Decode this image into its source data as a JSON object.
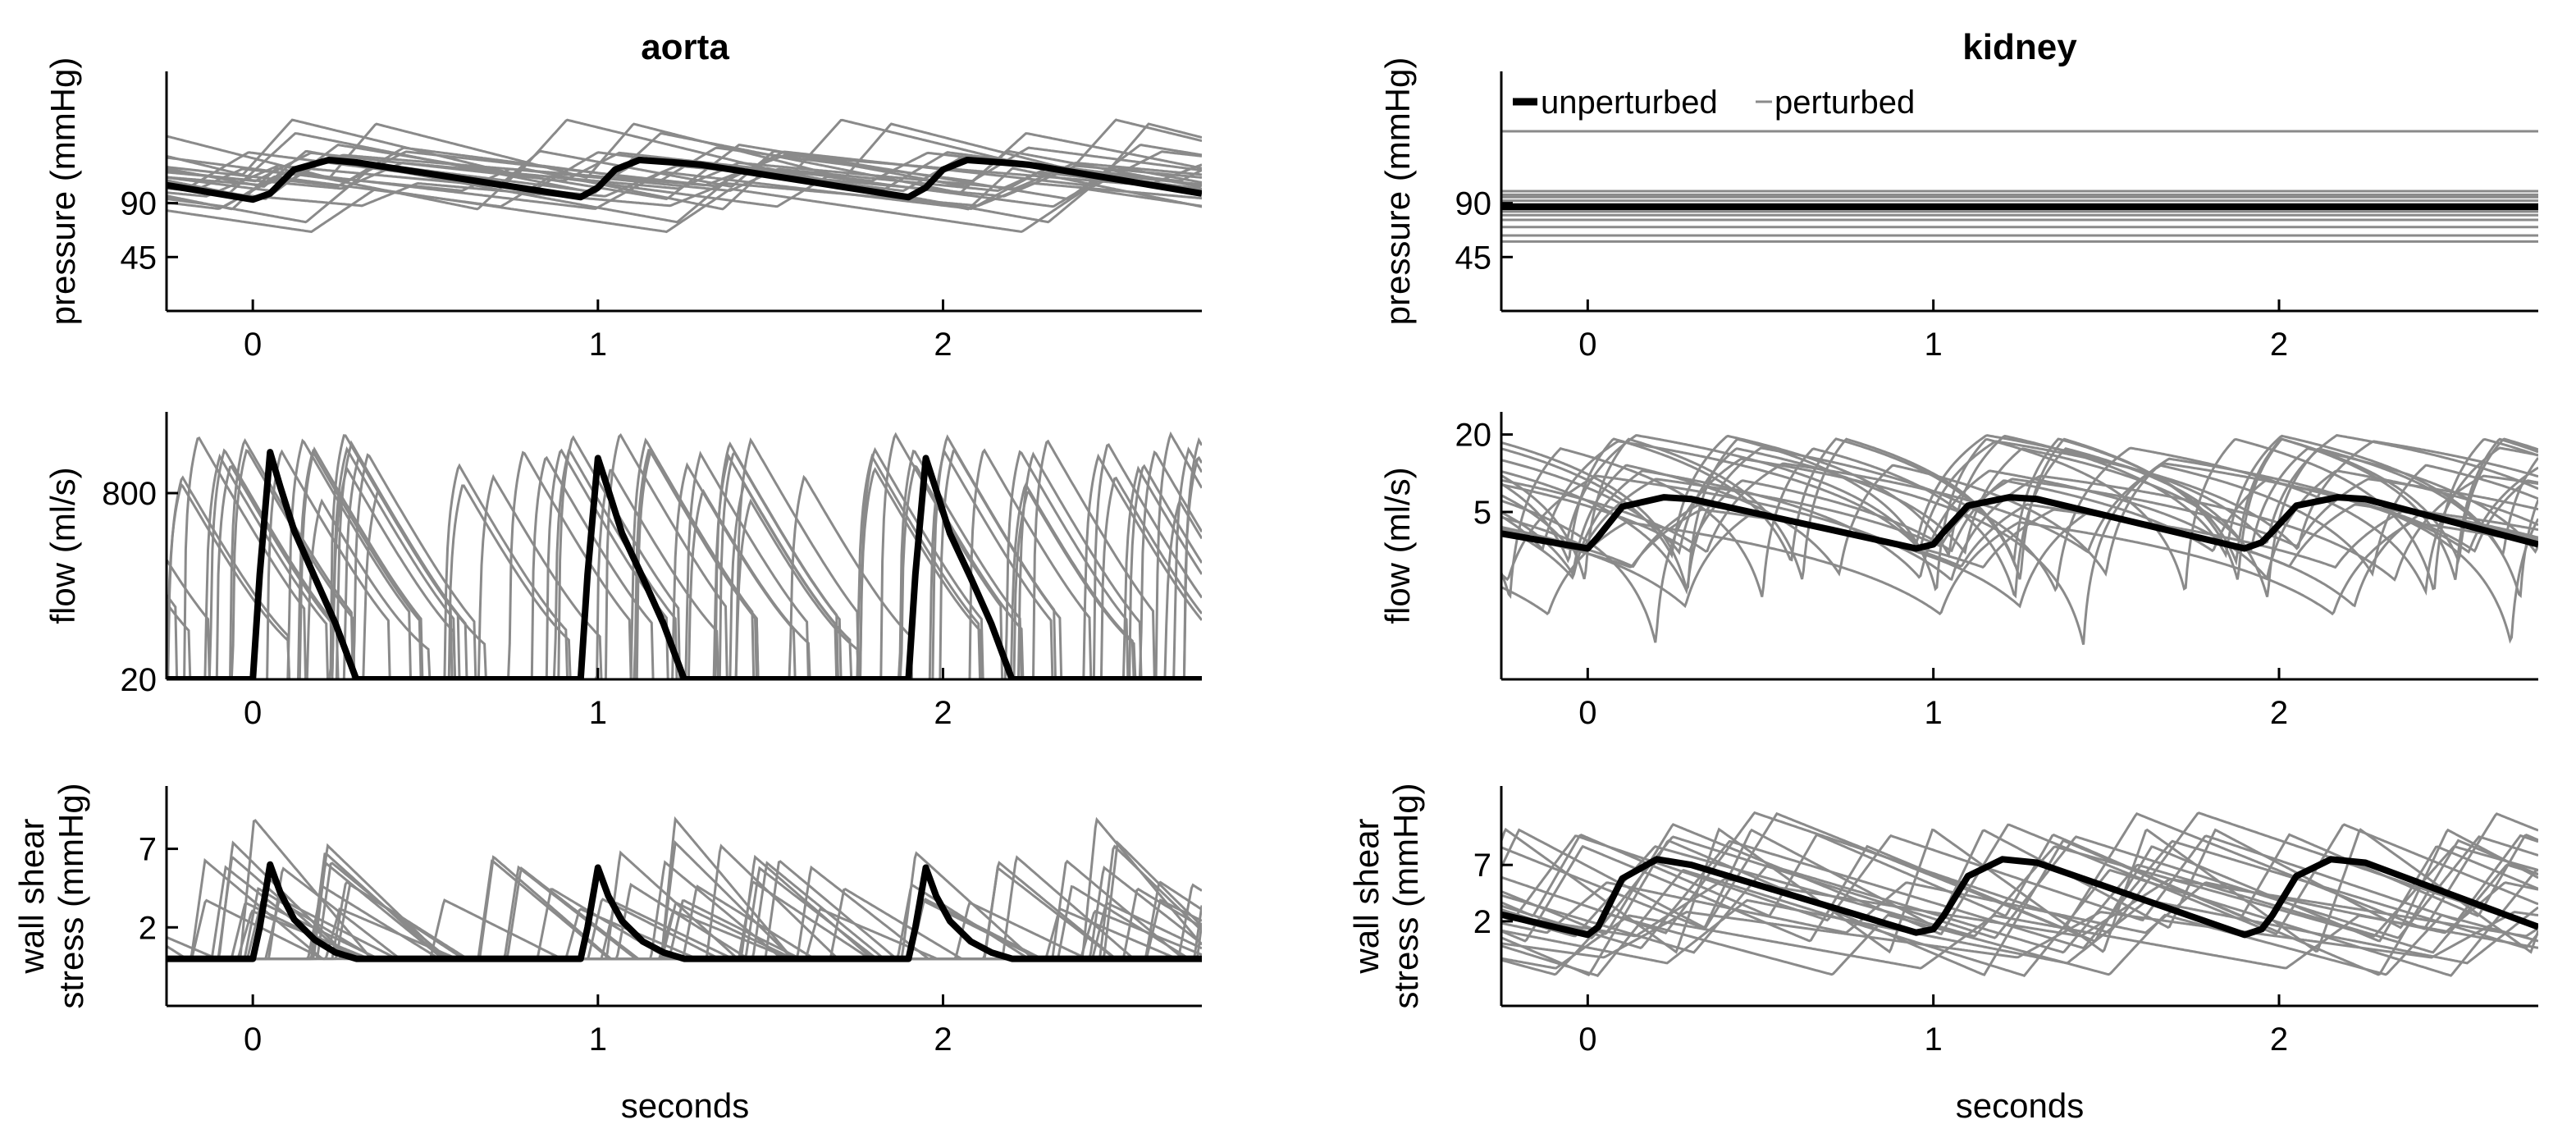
{
  "figure": {
    "columns": [
      {
        "title": "aorta",
        "xlabel": "seconds"
      },
      {
        "title": "kidney",
        "xlabel": "seconds"
      }
    ],
    "legend": {
      "unperturbed": "unperturbed",
      "perturbed": "perturbed"
    },
    "colors": {
      "unperturbed": "#000000",
      "perturbed": "#8a8a8a",
      "axis": "#000000"
    }
  },
  "chart_data": [
    {
      "id": "aorta_pressure",
      "type": "line",
      "title": "aorta",
      "xlabel": "",
      "ylabel": [
        "pressure (mmHg)"
      ],
      "xlim": [
        -0.25,
        2.75
      ],
      "ylim": [
        0,
        200
      ],
      "xticks": [
        0,
        1,
        2
      ],
      "yticks": [
        45,
        90
      ],
      "unperturbed": {
        "x": [
          -0.25,
          0,
          0.05,
          0.12,
          0.22,
          0.3,
          0.95,
          1.0,
          1.05,
          1.12,
          1.22,
          1.3,
          1.9,
          1.95,
          2.0,
          2.07,
          2.17,
          2.25,
          2.75
        ],
        "y": [
          105,
          93,
          98,
          118,
          126,
          124,
          95,
          103,
          118,
          126,
          124,
          122,
          95,
          103,
          118,
          126,
          124,
          122,
          98
        ]
      },
      "perturbed": {
        "kind": "periodic",
        "count": 20,
        "period_range": [
          0.6,
          1.3
        ],
        "base_range": [
          65,
          118
        ],
        "amp_range": [
          18,
          50
        ],
        "shape": "pressure"
      }
    },
    {
      "id": "aorta_flow",
      "type": "line",
      "title": "",
      "xlabel": "",
      "ylabel": [
        "flow (ml/s)"
      ],
      "yscale": "log",
      "xlim": [
        -0.25,
        2.75
      ],
      "ylim": [
        20,
        4000
      ],
      "xticks": [
        0,
        1,
        2
      ],
      "yticks": [
        20,
        800
      ],
      "unperturbed": {
        "x": [
          -0.25,
          0,
          0.02,
          0.05,
          0.08,
          0.12,
          0.18,
          0.24,
          0.3,
          0.95,
          0.97,
          1.0,
          1.03,
          1.07,
          1.13,
          1.19,
          1.25,
          1.9,
          1.92,
          1.95,
          1.98,
          2.02,
          2.08,
          2.14,
          2.2,
          2.75
        ],
        "y": [
          20,
          20,
          160,
          1800,
          900,
          380,
          150,
          60,
          20,
          20,
          160,
          1600,
          850,
          360,
          150,
          60,
          20,
          20,
          160,
          1600,
          850,
          360,
          150,
          60,
          20,
          20
        ]
      },
      "perturbed": {
        "kind": "periodic",
        "count": 20,
        "period_range": [
          0.6,
          1.3
        ],
        "peak_range": [
          400,
          2600
        ],
        "shape": "spike"
      }
    },
    {
      "id": "aorta_wss",
      "type": "line",
      "title": "",
      "xlabel": "seconds",
      "ylabel": [
        "wall shear",
        "stress (mmHg)"
      ],
      "xlim": [
        -0.25,
        2.75
      ],
      "ylim": [
        -3,
        11
      ],
      "xticks": [
        0,
        1,
        2
      ],
      "yticks": [
        2,
        7
      ],
      "unperturbed": {
        "x": [
          -0.25,
          0,
          0.02,
          0.05,
          0.08,
          0.12,
          0.18,
          0.24,
          0.3,
          0.95,
          0.97,
          1.0,
          1.03,
          1.07,
          1.13,
          1.19,
          1.25,
          1.9,
          1.92,
          1.95,
          1.98,
          2.02,
          2.08,
          2.14,
          2.2,
          2.75
        ],
        "y": [
          0,
          0,
          2,
          6,
          4.2,
          2.5,
          1.2,
          0.4,
          0,
          0,
          2,
          5.8,
          4,
          2.4,
          1.1,
          0.4,
          0,
          0,
          2,
          5.8,
          4,
          2.4,
          1.1,
          0.4,
          0,
          0
        ]
      },
      "perturbed": {
        "kind": "periodic",
        "count": 20,
        "period_range": [
          0.6,
          1.3
        ],
        "peak_range": [
          3,
          9
        ],
        "shape": "spike_lin"
      }
    },
    {
      "id": "kidney_pressure",
      "type": "line",
      "title": "kidney",
      "xlabel": "",
      "ylabel": [
        "pressure (mmHg)"
      ],
      "xlim": [
        -0.25,
        2.75
      ],
      "ylim": [
        0,
        200
      ],
      "xticks": [
        0,
        1,
        2
      ],
      "yticks": [
        45,
        90
      ],
      "unperturbed": {
        "x": [
          -0.25,
          2.75
        ],
        "y": [
          87,
          87
        ]
      },
      "perturbed": {
        "kind": "flat",
        "levels": [
          58,
          63,
          70,
          76,
          80,
          83,
          85,
          89,
          92,
          95,
          97,
          100,
          150
        ]
      }
    },
    {
      "id": "kidney_flow",
      "type": "line",
      "title": "",
      "xlabel": "",
      "ylabel": [
        "flow (ml/s)"
      ],
      "yscale": "log",
      "xlim": [
        -0.25,
        2.75
      ],
      "ylim": [
        0.25,
        30
      ],
      "xticks": [
        0,
        1,
        2
      ],
      "yticks": [
        5,
        20
      ],
      "unperturbed": {
        "x": [
          -0.25,
          0,
          0.03,
          0.1,
          0.22,
          0.3,
          0.95,
          1.0,
          1.03,
          1.1,
          1.22,
          1.3,
          1.9,
          1.95,
          1.98,
          2.05,
          2.17,
          2.25,
          2.75
        ],
        "y": [
          3.4,
          2.6,
          3.2,
          5.5,
          6.5,
          6.3,
          2.6,
          2.8,
          3.5,
          5.6,
          6.5,
          6.3,
          2.6,
          2.9,
          3.5,
          5.6,
          6.5,
          6.3,
          2.8
        ]
      },
      "perturbed": {
        "kind": "periodic",
        "count": 20,
        "period_range": [
          0.6,
          1.3
        ],
        "base_range": [
          0.4,
          3
        ],
        "amp_range": [
          2,
          18
        ],
        "shape": "kidney"
      }
    },
    {
      "id": "kidney_wss",
      "type": "line",
      "title": "",
      "xlabel": "seconds",
      "ylabel": [
        "wall shear",
        "stress (mmHg)"
      ],
      "xlim": [
        -0.25,
        2.75
      ],
      "ylim": [
        -5.5,
        14
      ],
      "xticks": [
        0,
        1,
        2
      ],
      "yticks": [
        2,
        7
      ],
      "unperturbed": {
        "x": [
          -0.25,
          0,
          0.03,
          0.1,
          0.2,
          0.3,
          0.95,
          1.0,
          1.03,
          1.1,
          1.2,
          1.3,
          1.9,
          1.95,
          1.98,
          2.05,
          2.15,
          2.25,
          2.75
        ],
        "y": [
          2.6,
          0.8,
          1.5,
          5.8,
          7.5,
          7,
          1,
          1.3,
          2.5,
          6,
          7.5,
          7.2,
          0.8,
          1.3,
          2.5,
          6,
          7.5,
          7.2,
          1.5
        ]
      },
      "perturbed": {
        "kind": "periodic",
        "count": 20,
        "period_range": [
          0.6,
          1.3
        ],
        "base_range": [
          -3,
          2.5
        ],
        "amp_range": [
          4,
          12
        ],
        "shape": "kidney_lin"
      }
    }
  ]
}
